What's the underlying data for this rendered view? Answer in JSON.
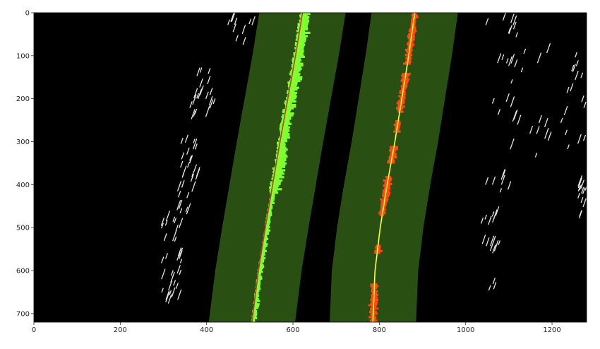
{
  "chart_data": {
    "type": "image",
    "xlim": [
      0,
      1280
    ],
    "ylim": [
      720,
      0
    ],
    "x_ticks": [
      0,
      200,
      400,
      600,
      800,
      1000,
      1200
    ],
    "y_ticks": [
      0,
      100,
      200,
      300,
      400,
      500,
      600,
      700
    ],
    "x_tick_labels": [
      "0",
      "200",
      "400",
      "600",
      "800",
      "1000",
      "1200"
    ],
    "y_tick_labels": [
      "0",
      "100",
      "200",
      "300",
      "400",
      "500",
      "600",
      "700"
    ],
    "background_color": "#000000",
    "search_margin_color": "#2a4f12",
    "margin_half_width": 100,
    "left_lane_pixels_color": "#7fff2e",
    "right_lane_pixels_color": "#ff4a12",
    "noise_pixels_color": "#e6e6e6",
    "series": [
      {
        "name": "left",
        "fit_color": "#c0392b",
        "x": [
          505,
          520,
          536,
          553,
          570,
          588,
          606,
          622
        ],
        "y": [
          720,
          600,
          500,
          400,
          300,
          200,
          100,
          0
        ]
      },
      {
        "name": "right",
        "fit_color": "#ffff3a",
        "x": [
          785,
          790,
          802,
          818,
          836,
          852,
          868,
          882
        ],
        "y": [
          720,
          600,
          500,
          400,
          300,
          200,
          100,
          0
        ]
      }
    ]
  }
}
